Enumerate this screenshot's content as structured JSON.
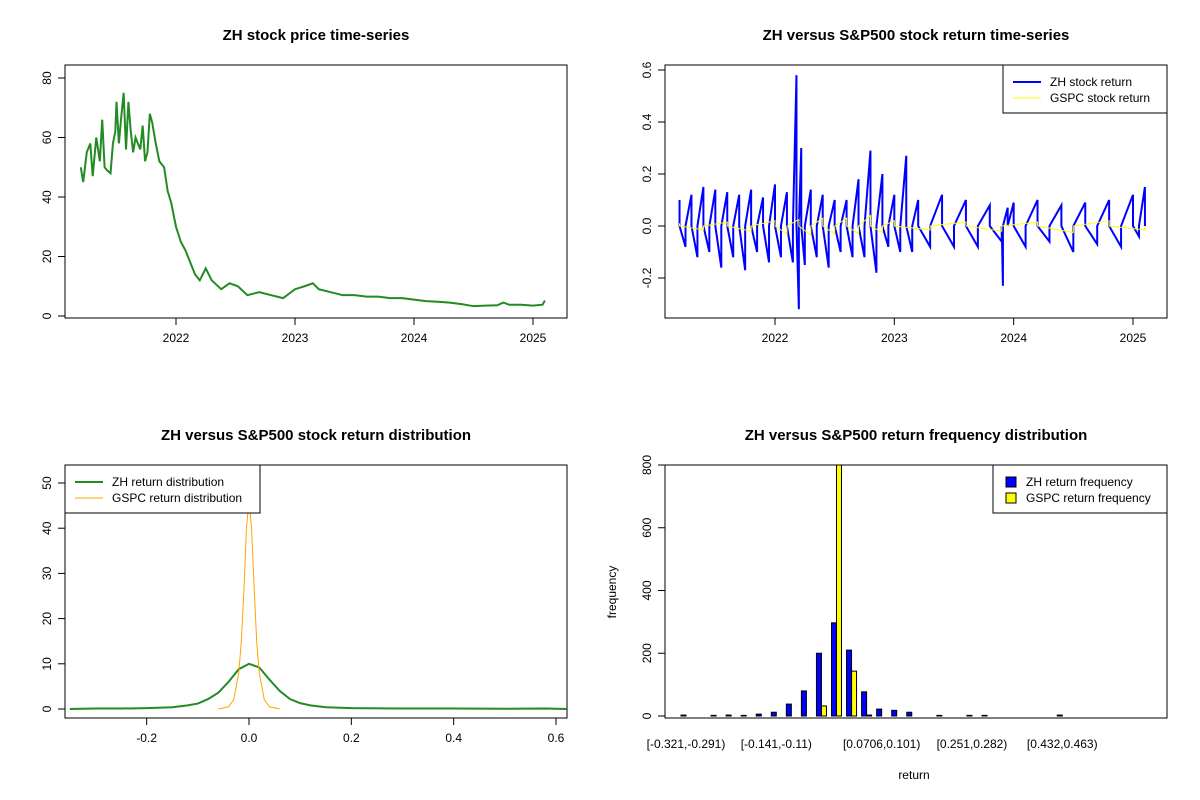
{
  "chart_data": [
    {
      "type": "line",
      "title": "ZH stock price time-series",
      "xlabel": "",
      "ylabel": "",
      "xlim": [
        2021.15,
        2025.2
      ],
      "ylim": [
        0,
        82
      ],
      "xticks": [
        "2022",
        "2023",
        "2024",
        "2025"
      ],
      "yticks": [
        "0",
        "20",
        "40",
        "60",
        "80"
      ],
      "color": "#228B22",
      "x": [
        2021.2,
        2021.22,
        2021.25,
        2021.28,
        2021.3,
        2021.33,
        2021.36,
        2021.38,
        2021.4,
        2021.42,
        2021.45,
        2021.47,
        2021.49,
        2021.5,
        2021.52,
        2021.54,
        2021.56,
        2021.58,
        2021.6,
        2021.62,
        2021.64,
        2021.66,
        2021.68,
        2021.7,
        2021.72,
        2021.74,
        2021.76,
        2021.78,
        2021.8,
        2021.83,
        2021.86,
        2021.9,
        2021.93,
        2021.96,
        2022.0,
        2022.04,
        2022.08,
        2022.12,
        2022.16,
        2022.2,
        2022.25,
        2022.3,
        2022.38,
        2022.45,
        2022.52,
        2022.6,
        2022.7,
        2022.8,
        2022.9,
        2023.0,
        2023.08,
        2023.15,
        2023.2,
        2023.3,
        2023.4,
        2023.5,
        2023.6,
        2023.7,
        2023.8,
        2023.9,
        2024.0,
        2024.1,
        2024.2,
        2024.3,
        2024.4,
        2024.5,
        2024.6,
        2024.7,
        2024.75,
        2024.8,
        2024.9,
        2025.0,
        2025.08,
        2025.1
      ],
      "y": [
        50,
        45,
        55,
        58,
        47,
        60,
        52,
        66,
        50,
        49,
        48,
        58,
        62,
        72,
        58,
        67,
        75,
        56,
        72,
        62,
        55,
        60,
        58,
        56,
        64,
        52,
        55,
        68,
        65,
        58,
        52,
        50,
        42,
        38,
        30,
        25,
        22,
        18,
        14,
        12,
        16,
        12,
        9,
        11,
        10,
        7,
        8,
        7,
        6,
        9,
        10,
        11,
        9,
        8,
        7,
        7,
        6.5,
        6.5,
        6,
        6,
        5.5,
        5,
        4.8,
        4.5,
        4,
        3.3,
        3.5,
        3.6,
        4.5,
        3.8,
        3.8,
        3.5,
        3.8,
        5.2
      ]
    },
    {
      "type": "line",
      "title": "ZH versus S&P500 stock return time-series",
      "xlim": [
        2021.15,
        2025.2
      ],
      "ylim": [
        -0.33,
        0.6
      ],
      "xticks": [
        "2022",
        "2023",
        "2024",
        "2025"
      ],
      "yticks": [
        "-0.2",
        "0.0",
        "0.2",
        "0.4",
        "0.6"
      ],
      "legend": {
        "position": "top-right"
      },
      "series": [
        {
          "name": "ZH stock return",
          "color": "#0000FF",
          "x": [
            2021.2,
            2021.25,
            2021.3,
            2021.35,
            2021.4,
            2021.45,
            2021.5,
            2021.55,
            2021.6,
            2021.65,
            2021.7,
            2021.75,
            2021.8,
            2021.85,
            2021.9,
            2021.95,
            2022.0,
            2022.05,
            2022.1,
            2022.15,
            2022.18,
            2022.2,
            2022.22,
            2022.25,
            2022.3,
            2022.35,
            2022.4,
            2022.45,
            2022.5,
            2022.55,
            2022.6,
            2022.65,
            2022.7,
            2022.75,
            2022.8,
            2022.85,
            2022.9,
            2022.95,
            2023.0,
            2023.05,
            2023.1,
            2023.15,
            2023.2,
            2023.3,
            2023.4,
            2023.5,
            2023.6,
            2023.7,
            2023.8,
            2023.9,
            2023.91,
            2023.95,
            2024.0,
            2024.1,
            2024.2,
            2024.3,
            2024.4,
            2024.5,
            2024.6,
            2024.7,
            2024.8,
            2024.9,
            2025.0,
            2025.05,
            2025.1
          ],
          "y": [
            0.1,
            -0.08,
            0.12,
            -0.12,
            0.15,
            -0.1,
            0.14,
            -0.16,
            0.13,
            -0.12,
            0.12,
            -0.17,
            0.14,
            -0.1,
            0.11,
            -0.14,
            0.16,
            -0.12,
            0.13,
            -0.14,
            0.58,
            -0.32,
            0.3,
            -0.15,
            0.14,
            -0.12,
            0.12,
            -0.16,
            0.1,
            -0.1,
            0.1,
            -0.12,
            0.18,
            -0.12,
            0.29,
            -0.18,
            0.2,
            -0.08,
            0.12,
            -0.1,
            0.27,
            -0.1,
            0.1,
            -0.08,
            0.12,
            -0.08,
            0.1,
            -0.08,
            0.08,
            -0.06,
            -0.23,
            0.07,
            0.09,
            -0.08,
            0.1,
            -0.06,
            0.08,
            -0.1,
            0.09,
            -0.07,
            0.1,
            -0.08,
            0.12,
            -0.04,
            0.15
          ]
        },
        {
          "name": "GSPC stock return",
          "color": "#FFFF00",
          "x": [
            2021.2,
            2021.4,
            2021.6,
            2021.8,
            2022.0,
            2022.1,
            2022.2,
            2022.3,
            2022.4,
            2022.5,
            2022.6,
            2022.7,
            2022.8,
            2022.9,
            2023.0,
            2023.3,
            2023.6,
            2023.9,
            2024.2,
            2024.5,
            2024.8,
            2025.1
          ],
          "y": [
            0.01,
            -0.015,
            0.015,
            -0.02,
            0.02,
            -0.03,
            0.025,
            -0.035,
            0.03,
            -0.03,
            0.03,
            -0.03,
            0.04,
            -0.025,
            0.02,
            -0.015,
            0.015,
            -0.02,
            0.015,
            -0.025,
            0.02,
            -0.015
          ]
        }
      ]
    },
    {
      "type": "line",
      "title": "ZH versus S&P500 stock return distribution",
      "xlim": [
        -0.35,
        0.62
      ],
      "ylim": [
        0,
        52
      ],
      "xticks": [
        "-0.2",
        "0.0",
        "0.2",
        "0.4",
        "0.6"
      ],
      "yticks": [
        "0",
        "10",
        "20",
        "30",
        "40",
        "50"
      ],
      "legend": {
        "position": "top-left"
      },
      "series": [
        {
          "name": "ZH return distribution",
          "color": "#228B22",
          "x": [
            -0.35,
            -0.3,
            -0.25,
            -0.2,
            -0.15,
            -0.12,
            -0.1,
            -0.08,
            -0.06,
            -0.04,
            -0.02,
            0,
            0.02,
            0.04,
            0.06,
            0.08,
            0.1,
            0.12,
            0.15,
            0.2,
            0.3,
            0.4,
            0.5,
            0.58,
            0.62
          ],
          "y": [
            0,
            0.1,
            0.1,
            0.2,
            0.4,
            0.8,
            1.2,
            2.2,
            3.6,
            6,
            8.8,
            10,
            9.2,
            6.5,
            4,
            2.2,
            1.3,
            0.8,
            0.4,
            0.2,
            0.1,
            0.1,
            0.05,
            0.1,
            0
          ]
        },
        {
          "name": "GSPC return distribution",
          "color": "#FFA500",
          "x": [
            -0.06,
            -0.04,
            -0.03,
            -0.02,
            -0.015,
            -0.01,
            -0.005,
            0,
            0.005,
            0.01,
            0.015,
            0.02,
            0.03,
            0.04,
            0.06
          ],
          "y": [
            0,
            0.5,
            2,
            8,
            15,
            26,
            40,
            46,
            40,
            27,
            15,
            8,
            2,
            0.5,
            0
          ]
        }
      ]
    },
    {
      "type": "bar",
      "title": "ZH versus S&P500 return frequency distribution",
      "xlabel": "return",
      "ylabel": "frequency",
      "ylim": [
        0,
        800
      ],
      "yticks": [
        "0",
        "200",
        "400",
        "600",
        "800"
      ],
      "legend": {
        "position": "top-right"
      },
      "category_labels": [
        {
          "index": 0,
          "label": "[-0.321,-0.291)"
        },
        {
          "index": 6,
          "label": "[-0.141,-0.11)"
        },
        {
          "index": 13,
          "label": "[0.0706,0.101)"
        },
        {
          "index": 19,
          "label": "[0.251,0.282)"
        },
        {
          "index": 25,
          "label": "[0.432,0.463)"
        }
      ],
      "series": [
        {
          "name": "ZH return frequency",
          "color": "#0000FF",
          "values": [
            3,
            0,
            2,
            3,
            2,
            6,
            12,
            38,
            80,
            200,
            297,
            210,
            77,
            22,
            18,
            12,
            0,
            2,
            0,
            2,
            2,
            0,
            0,
            0,
            0,
            3,
            0,
            0,
            0,
            0
          ]
        },
        {
          "name": "GSPC return frequency",
          "color": "#FFFF00",
          "values": [
            0,
            0,
            0,
            0,
            0,
            0,
            0,
            0,
            0,
            32,
            850,
            143,
            3,
            0,
            0,
            0,
            0,
            0,
            0,
            0,
            0,
            0,
            0,
            0,
            0,
            0,
            0,
            0,
            0,
            0
          ]
        }
      ]
    }
  ]
}
